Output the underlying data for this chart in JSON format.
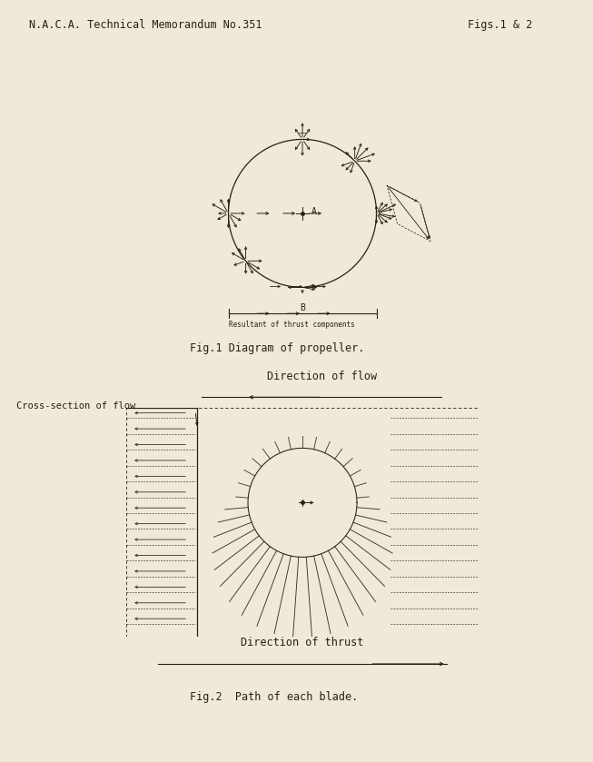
{
  "bg_color": "#f0e8d8",
  "line_color": "#2a2010",
  "header_left": "N.A.C.A. Technical Memorandum No.351",
  "header_right": "Figs.1 & 2",
  "fig1_caption": "Fig.1 Diagram of propeller.",
  "fig2_caption": "Fig.2  Path of each blade.",
  "resultant_label": "Resultant of thrust components",
  "direction_flow_label": "Direction of flow",
  "cross_section_label": "Cross-section of flow",
  "direction_thrust_label": "Direction of thrust",
  "label_A": "A",
  "label_B": "B"
}
